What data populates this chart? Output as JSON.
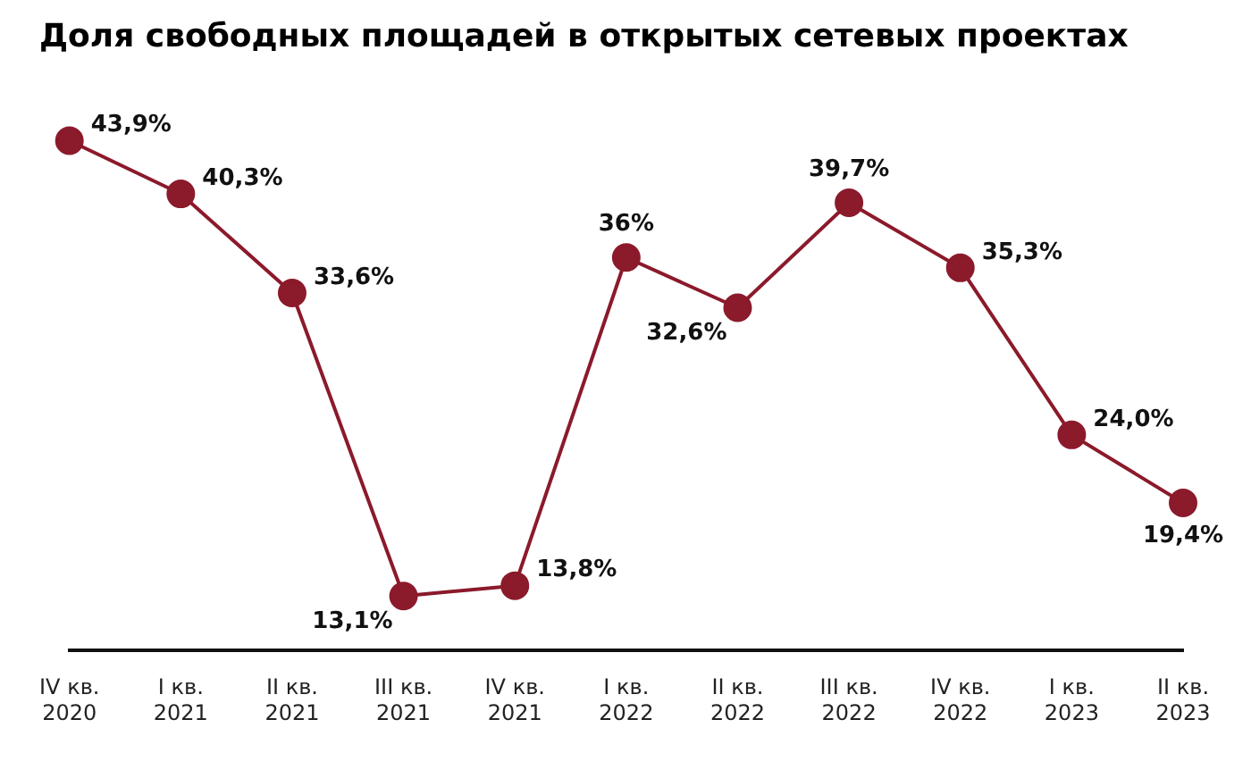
{
  "chart_data": {
    "type": "line",
    "title": "Доля свободных площадей в открытых сетевых проектах",
    "categories": [
      "IV кв.\n2020",
      "I кв.\n2021",
      "II кв.\n2021",
      "III кв.\n2021",
      "IV кв.\n2021",
      "I кв.\n2022",
      "II кв.\n2022",
      "III кв.\n2022",
      "IV кв.\n2022",
      "I кв.\n2023",
      "II кв.\n2023"
    ],
    "series": [
      {
        "color": "#8b1a2b",
        "values": [
          43.9,
          40.3,
          33.6,
          13.1,
          13.8,
          36,
          32.6,
          39.7,
          35.3,
          24.0,
          19.4
        ],
        "value_labels": [
          "43,9%",
          "40,3%",
          "33,6%",
          "13,1%",
          "13,8%",
          "36%",
          "32,6%",
          "39,7%",
          "35,3%",
          "24,0%",
          "19,4%"
        ]
      }
    ],
    "marker": "circle",
    "grid": false,
    "legend": false
  }
}
